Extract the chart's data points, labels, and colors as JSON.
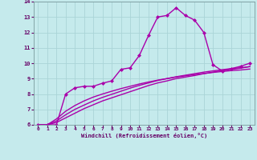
{
  "xlabel": "Windchill (Refroidissement éolien,°C)",
  "xlim": [
    -0.5,
    23.5
  ],
  "ylim": [
    6,
    14
  ],
  "xticks": [
    0,
    1,
    2,
    3,
    4,
    5,
    6,
    7,
    8,
    9,
    10,
    11,
    12,
    13,
    14,
    15,
    16,
    17,
    18,
    19,
    20,
    21,
    22,
    23
  ],
  "yticks": [
    6,
    7,
    8,
    9,
    10,
    11,
    12,
    13,
    14
  ],
  "background_color": "#c5eaec",
  "grid_color": "#aad4d7",
  "line_color": "#aa00aa",
  "line_width": 1.0,
  "marker": "D",
  "marker_size": 2.0,
  "curves": [
    {
      "x": [
        0,
        1,
        2,
        3,
        4,
        5,
        6,
        7,
        8,
        9,
        10,
        11,
        12,
        13,
        14,
        15,
        16,
        17,
        18,
        19,
        20,
        21,
        22,
        23
      ],
      "y": [
        6.0,
        6.0,
        6.0,
        8.0,
        8.4,
        8.5,
        8.5,
        8.7,
        8.85,
        9.6,
        9.7,
        10.5,
        11.8,
        13.0,
        13.1,
        13.6,
        13.1,
        12.8,
        12.0,
        9.9,
        9.5,
        9.65,
        9.8,
        10.0
      ],
      "has_markers": true
    },
    {
      "x": [
        0,
        1,
        2,
        3,
        4,
        5,
        6,
        7,
        8,
        9,
        10,
        11,
        12,
        13,
        14,
        15,
        16,
        17,
        18,
        19,
        20,
        21,
        22,
        23
      ],
      "y": [
        6.0,
        6.0,
        6.15,
        6.45,
        6.75,
        7.05,
        7.3,
        7.55,
        7.75,
        7.95,
        8.15,
        8.35,
        8.55,
        8.72,
        8.85,
        9.0,
        9.1,
        9.2,
        9.32,
        9.42,
        9.52,
        9.6,
        9.68,
        9.78
      ],
      "has_markers": false
    },
    {
      "x": [
        0,
        1,
        2,
        3,
        4,
        5,
        6,
        7,
        8,
        9,
        10,
        11,
        12,
        13,
        14,
        15,
        16,
        17,
        18,
        19,
        20,
        21,
        22,
        23
      ],
      "y": [
        6.0,
        6.0,
        6.25,
        6.65,
        7.0,
        7.28,
        7.55,
        7.78,
        7.98,
        8.18,
        8.38,
        8.56,
        8.72,
        8.88,
        9.0,
        9.12,
        9.22,
        9.32,
        9.42,
        9.5,
        9.58,
        9.65,
        9.7,
        9.78
      ],
      "has_markers": false
    },
    {
      "x": [
        0,
        1,
        2,
        3,
        4,
        5,
        6,
        7,
        8,
        9,
        10,
        11,
        12,
        13,
        14,
        15,
        16,
        17,
        18,
        19,
        20,
        21,
        22,
        23
      ],
      "y": [
        6.0,
        6.0,
        6.38,
        6.88,
        7.25,
        7.55,
        7.8,
        8.0,
        8.18,
        8.35,
        8.5,
        8.65,
        8.78,
        8.9,
        9.0,
        9.1,
        9.18,
        9.26,
        9.33,
        9.4,
        9.46,
        9.52,
        9.56,
        9.62
      ],
      "has_markers": false
    }
  ]
}
